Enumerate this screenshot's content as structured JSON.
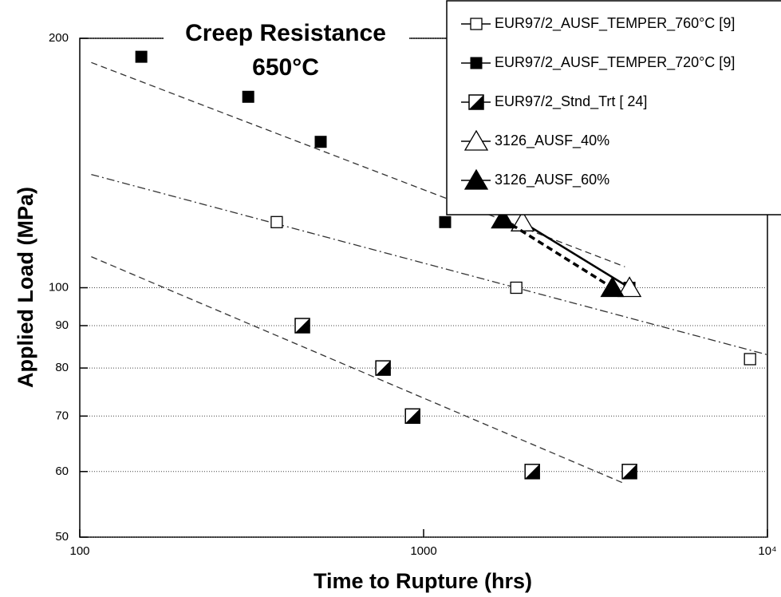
{
  "chart_data": {
    "type": "scatter",
    "title": [
      "Creep Resistance",
      "650°C"
    ],
    "x_label": "Time to Rupture (hrs)",
    "y_label": "Applied Load (MPa)",
    "log_x": true,
    "log_y": true,
    "xlim": [
      100,
      10000
    ],
    "ylim": [
      50,
      200
    ],
    "xticks": [
      100,
      1000,
      {
        "value": 10000,
        "label": "10⁴"
      }
    ],
    "yticks": [
      50,
      60,
      70,
      80,
      90,
      100,
      200
    ],
    "grid_y": true,
    "legend": "top-right",
    "series": [
      {
        "name": "EUR97/2_AUSF_TEMPER_760°C [9]",
        "color": "#000000",
        "marker": "open-square",
        "line": "none",
        "x": [
          374,
          1860,
          8900
        ],
        "values": [
          120,
          100,
          82
        ]
      },
      {
        "name": "EUR97/2_AUSF_TEMPER_720°C [9]",
        "color": "#000000",
        "marker": "filled-square",
        "line": "none",
        "x": [
          151,
          309,
          502,
          1155,
          3970
        ],
        "values": [
          190,
          170,
          150,
          120,
          100
        ]
      },
      {
        "name": "EUR97/2_Stnd_Trt [ 24]",
        "color": "#000000",
        "marker": "half-square",
        "line": "none",
        "x": [
          444,
          762,
          929,
          2070,
          3970
        ],
        "values": [
          90,
          80,
          70,
          60,
          60
        ]
      },
      {
        "name": "3126_AUSF_40%",
        "color": "#000000",
        "marker": "open-triangle",
        "line": "solid",
        "x": [
          1940,
          3970
        ],
        "values": [
          120,
          100
        ]
      },
      {
        "name": "3126_AUSF_60%",
        "color": "#000000",
        "marker": "filled-triangle",
        "line": "dashed",
        "x": [
          1700,
          3540
        ],
        "values": [
          121,
          100
        ]
      }
    ],
    "fit_lines": [
      {
        "style": "dashed",
        "x": [
          108,
          3850
        ],
        "values": [
          187,
          106
        ]
      },
      {
        "style": "dash-dot",
        "x": [
          108,
          10000
        ],
        "values": [
          137,
          83
        ]
      },
      {
        "style": "dashed",
        "x": [
          108,
          3850
        ],
        "values": [
          109,
          58
        ]
      }
    ]
  }
}
